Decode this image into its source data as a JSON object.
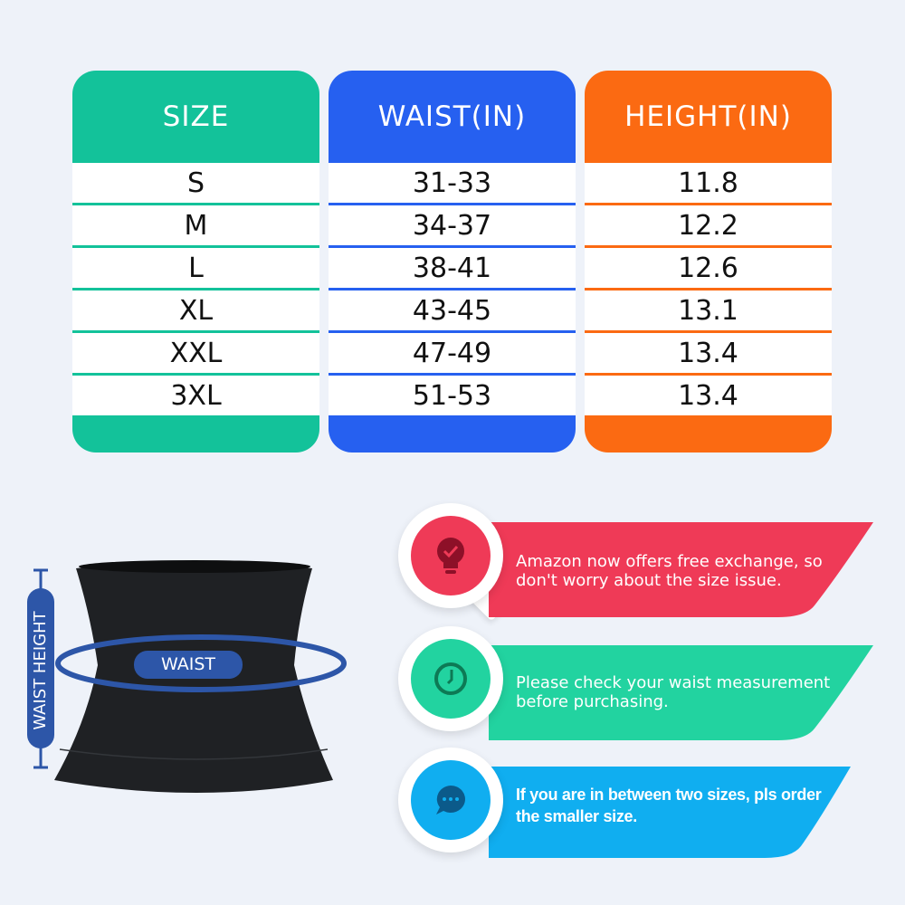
{
  "table": {
    "columns": [
      {
        "header": "SIZE",
        "color": "#13c29a",
        "values": [
          "S",
          "M",
          "L",
          "XL",
          "XXL",
          "3XL"
        ]
      },
      {
        "header": "WAIST(IN)",
        "color": "#2660f0",
        "values": [
          "31-33",
          "34-37",
          "38-41",
          "43-45",
          "47-49",
          "51-53"
        ]
      },
      {
        "header": "HEIGHT(IN)",
        "color": "#fb6a12",
        "values": [
          "11.8",
          "12.2",
          "12.6",
          "13.1",
          "13.4",
          "13.4"
        ]
      }
    ]
  },
  "diagram": {
    "waist_label": "WAIST",
    "height_label": "WAIST HEIGHT",
    "accent": "#2d56a8"
  },
  "callouts": [
    {
      "icon": "lightbulb-check-icon",
      "color": "#ef3a57",
      "text_line1": "Amazon now offers free exchange, so",
      "text_line2": "don't worry about the size issue."
    },
    {
      "icon": "clock-icon",
      "color": "#22d3a0",
      "text_line1": "Please check your waist measurement",
      "text_line2": "before purchasing."
    },
    {
      "icon": "chat-bubble-icon",
      "color": "#10aef0",
      "text_line1": "If you are in between two sizes, pls order",
      "text_line2": "the smaller size."
    }
  ]
}
